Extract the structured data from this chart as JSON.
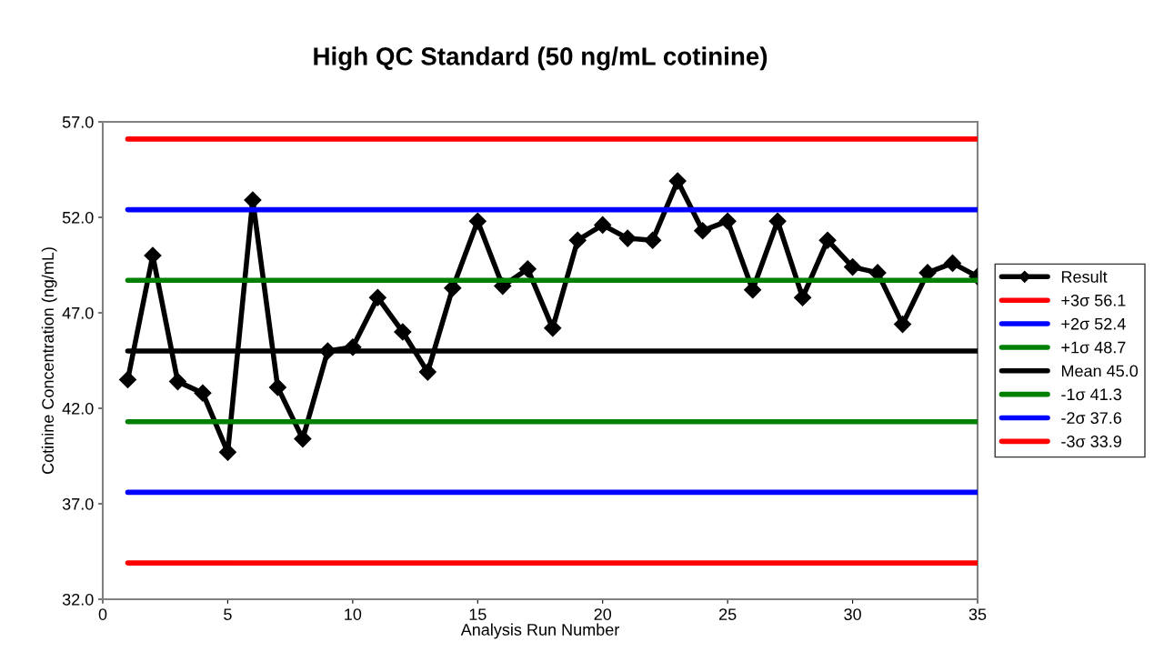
{
  "chart_data": {
    "type": "line",
    "title": "High QC Standard (50 ng/mL cotinine)",
    "xlabel": "Analysis Run Number",
    "ylabel": "Cotinine Concentration (ng/mL)",
    "x": [
      1,
      2,
      3,
      4,
      5,
      6,
      7,
      8,
      9,
      10,
      11,
      12,
      13,
      14,
      15,
      16,
      17,
      18,
      19,
      20,
      21,
      22,
      23,
      24,
      25,
      26,
      27,
      28,
      29,
      30,
      31,
      32,
      33,
      34,
      35
    ],
    "series": [
      {
        "name": "Result",
        "color": "#000000",
        "values": [
          43.5,
          50.0,
          43.4,
          42.8,
          39.7,
          52.9,
          43.1,
          40.4,
          45.0,
          45.2,
          47.8,
          46.0,
          43.9,
          48.3,
          51.8,
          48.4,
          49.3,
          46.2,
          50.8,
          51.6,
          50.9,
          50.8,
          53.9,
          51.3,
          51.8,
          48.2,
          51.8,
          47.8,
          50.8,
          49.4,
          49.1,
          46.4,
          49.1,
          49.6,
          48.9
        ]
      }
    ],
    "ref_lines": [
      {
        "axis": "y",
        "value": 56.1,
        "label": "+3σ 56.1",
        "color": "#ff0000"
      },
      {
        "axis": "y",
        "value": 52.4,
        "label": "+2σ 52.4",
        "color": "#0000ff"
      },
      {
        "axis": "y",
        "value": 48.7,
        "label": "+1σ 48.7",
        "color": "#008000"
      },
      {
        "axis": "y",
        "value": 45.0,
        "label": "Mean 45.0",
        "color": "#000000"
      },
      {
        "axis": "y",
        "value": 41.3,
        "label": "-1σ 41.3",
        "color": "#008000"
      },
      {
        "axis": "y",
        "value": 37.6,
        "label": "-2σ 37.6",
        "color": "#0000ff"
      },
      {
        "axis": "y",
        "value": 33.9,
        "label": "-3σ 33.9",
        "color": "#ff0000"
      }
    ],
    "marker": "diamond",
    "xlim": [
      0,
      35
    ],
    "xticks": [
      0,
      5,
      10,
      15,
      20,
      25,
      30,
      35
    ],
    "ylim": [
      32,
      57
    ],
    "yticks": [
      {
        "value": 32,
        "label": "32.0"
      },
      {
        "value": 37,
        "label": "37.0"
      },
      {
        "value": 42,
        "label": "42.0"
      },
      {
        "value": 47,
        "label": "47.0"
      },
      {
        "value": 52,
        "label": "52.0"
      },
      {
        "value": 57,
        "label": "57.0"
      }
    ],
    "grid": false,
    "legend": "right"
  }
}
